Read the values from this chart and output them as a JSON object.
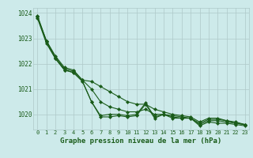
{
  "x": [
    0,
    1,
    2,
    3,
    4,
    5,
    6,
    7,
    8,
    9,
    10,
    11,
    12,
    13,
    14,
    15,
    16,
    17,
    18,
    19,
    20,
    21,
    22,
    23
  ],
  "series": [
    [
      1023.8,
      1022.8,
      1022.2,
      1021.75,
      1021.65,
      1021.3,
      1020.5,
      1019.9,
      1019.9,
      1019.95,
      1019.9,
      1019.95,
      1020.4,
      1019.85,
      1020.0,
      1019.85,
      1019.85,
      1019.85,
      1019.55,
      1019.7,
      1019.65,
      1019.65,
      1019.6,
      1019.55
    ],
    [
      1023.85,
      1022.85,
      1022.2,
      1021.75,
      1021.65,
      1021.3,
      1020.5,
      1019.95,
      1020.0,
      1020.0,
      1019.95,
      1020.0,
      1020.45,
      1019.9,
      1020.0,
      1019.9,
      1019.85,
      1019.85,
      1019.6,
      1019.75,
      1019.75,
      1019.7,
      1019.65,
      1019.6
    ],
    [
      1023.85,
      1022.9,
      1022.25,
      1021.8,
      1021.7,
      1021.35,
      1021.0,
      1020.5,
      1020.3,
      1020.2,
      1020.1,
      1020.1,
      1020.2,
      1020.0,
      1020.0,
      1019.95,
      1019.9,
      1019.85,
      1019.65,
      1019.8,
      1019.8,
      1019.75,
      1019.65,
      1019.6
    ],
    [
      1023.9,
      1022.9,
      1022.3,
      1021.85,
      1021.75,
      1021.35,
      1021.3,
      1021.1,
      1020.9,
      1020.7,
      1020.5,
      1020.4,
      1020.4,
      1020.2,
      1020.1,
      1020.0,
      1019.95,
      1019.9,
      1019.7,
      1019.85,
      1019.85,
      1019.75,
      1019.7,
      1019.6
    ]
  ],
  "line_color": "#1a5c1a",
  "marker": "D",
  "markersize": 2.0,
  "linewidth": 0.8,
  "ylim": [
    1019.4,
    1024.2
  ],
  "yticks": [
    1020,
    1021,
    1022,
    1023,
    1024
  ],
  "xticks": [
    0,
    1,
    2,
    3,
    4,
    5,
    6,
    7,
    8,
    9,
    10,
    11,
    12,
    13,
    14,
    15,
    16,
    17,
    18,
    19,
    20,
    21,
    22,
    23
  ],
  "xlabel": "Graphe pression niveau de la mer (hPa)",
  "bg_color": "#cdeaea",
  "grid_color": "#aec8c8",
  "xlabel_color": "#1a5c1a",
  "tick_color": "#1a5c1a"
}
